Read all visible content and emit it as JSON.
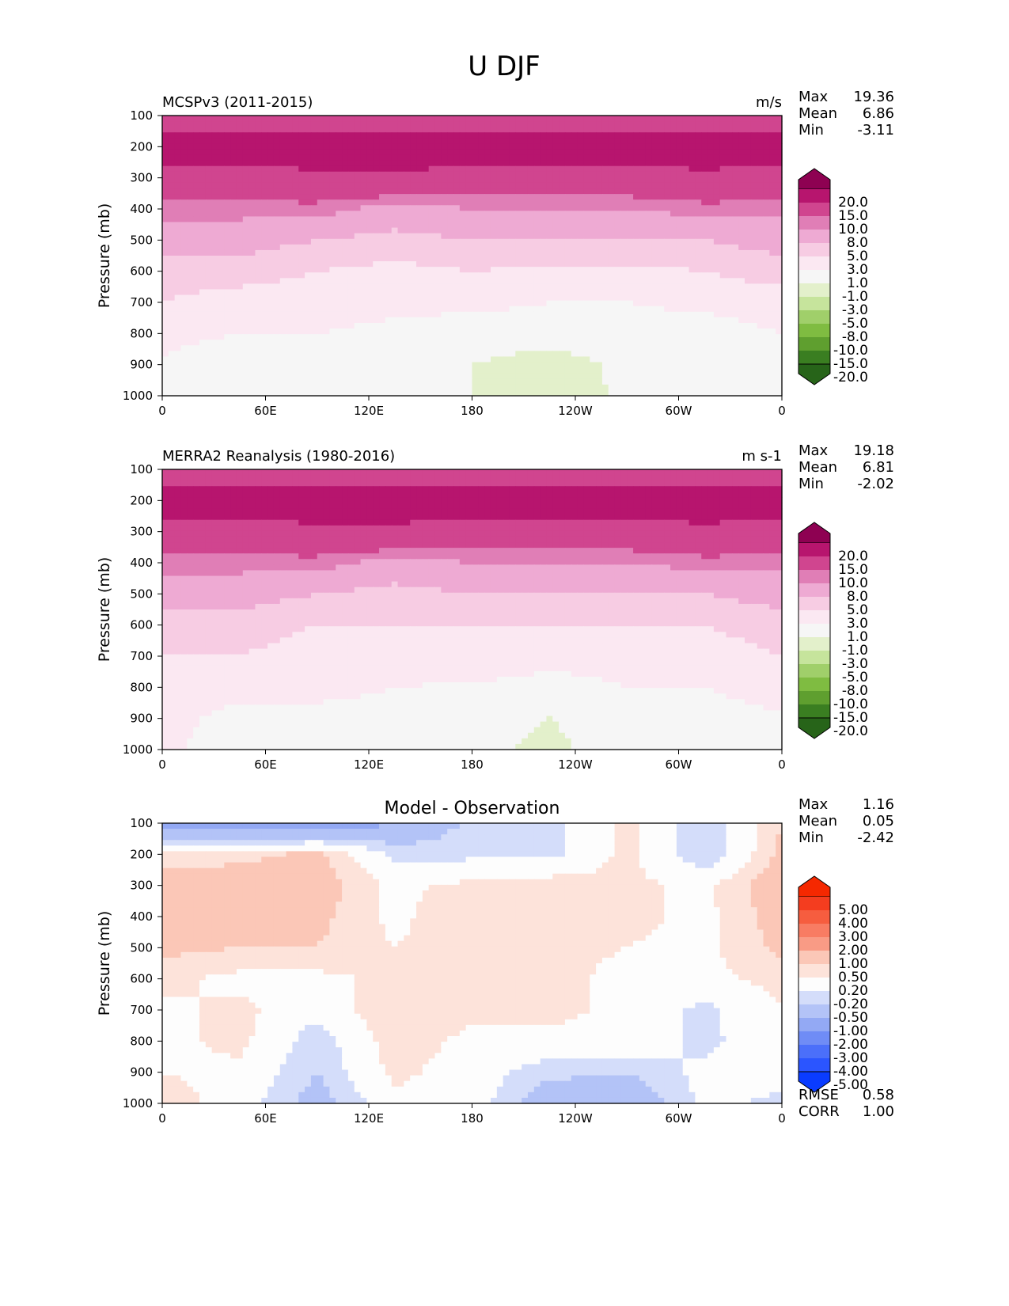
{
  "figure_title": "U DJF",
  "colors": {
    "main_bounds": [
      -25,
      -20,
      -15,
      -10,
      -8,
      -5,
      -3,
      -1,
      1,
      3,
      5,
      8,
      10,
      15,
      20,
      25
    ],
    "main_palette": [
      "#276419",
      "#3a7e21",
      "#5f9f2f",
      "#7fbc41",
      "#a0cf6a",
      "#c6e49c",
      "#e3f0cb",
      "#f6f6f6",
      "#fbe8f2",
      "#f7cce3",
      "#eeaad3",
      "#e07eb6",
      "#d0458f",
      "#b7156e",
      "#8e0152"
    ],
    "diff_bounds": [
      -6,
      -5,
      -4,
      -3,
      -2,
      -1,
      -0.5,
      -0.2,
      0.2,
      0.5,
      1,
      2,
      3,
      4,
      5,
      6
    ],
    "diff_palette": [
      "#0a3cff",
      "#2b55ff",
      "#4b6ffa",
      "#6f8cf6",
      "#93a9f4",
      "#b3c3f7",
      "#d4ddfa",
      "#fdfdfd",
      "#fde3da",
      "#fbc7b7",
      "#f99b85",
      "#f87c63",
      "#f65d3f",
      "#f43d1f",
      "#f52800"
    ]
  },
  "panels": [
    {
      "title": "MCSPv3 (2011-2015)",
      "units": "m/s",
      "stats": [
        {
          "label": "Max",
          "value": "19.36"
        },
        {
          "label": "Mean",
          "value": "6.86"
        },
        {
          "label": "Min",
          "value": "-3.11"
        }
      ],
      "extra_stats": []
    },
    {
      "title": "MERRA2 Reanalysis (1980-2016)",
      "units": "m s-1",
      "stats": [
        {
          "label": "Max",
          "value": "19.18"
        },
        {
          "label": "Mean",
          "value": "6.81"
        },
        {
          "label": "Min",
          "value": "-2.02"
        }
      ],
      "extra_stats": []
    },
    {
      "title": "Model - Observation",
      "units": "",
      "stats": [
        {
          "label": "Max",
          "value": "1.16"
        },
        {
          "label": "Mean",
          "value": "0.05"
        },
        {
          "label": "Min",
          "value": "-2.42"
        }
      ],
      "extra_stats": [
        {
          "label": "RMSE",
          "value": "0.58"
        },
        {
          "label": "CORR",
          "value": "1.00"
        }
      ]
    }
  ],
  "chart_data": [
    {
      "type": "heatmap",
      "title": "MCSPv3 (2011-2015)",
      "ylabel": "Pressure (mb)",
      "xlabel": "",
      "xticks": [
        "0",
        "60E",
        "120E",
        "180",
        "120W",
        "60W",
        "0"
      ],
      "yticks": [
        "100",
        "200",
        "300",
        "400",
        "500",
        "600",
        "700",
        "800",
        "900",
        "1000"
      ],
      "xlim": [
        0,
        360
      ],
      "ylim": [
        1000,
        100
      ],
      "colorbar_labels": [
        "20.0",
        "15.0",
        "10.0",
        "8.0",
        "5.0",
        "3.0",
        "1.0",
        "-1.0",
        "-3.0",
        "-5.0",
        "-8.0",
        "-10.0",
        "-15.0",
        "-20.0"
      ],
      "levels_hPa": [
        100,
        200,
        300,
        400,
        500,
        600,
        700,
        800,
        900,
        1000
      ],
      "lon": [
        0,
        45,
        90,
        135,
        180,
        225,
        270,
        315,
        360
      ],
      "values": [
        [
          12,
          11,
          11,
          10,
          11,
          11,
          11,
          11,
          12
        ],
        [
          18,
          18,
          18,
          19,
          18,
          18,
          18,
          18,
          18
        ],
        [
          13,
          13,
          14,
          14,
          13,
          13,
          13,
          14,
          13
        ],
        [
          9,
          9,
          9,
          7,
          8,
          8,
          8,
          9,
          9
        ],
        [
          6,
          6,
          5,
          4,
          5,
          5,
          5,
          5,
          6
        ],
        [
          4,
          4,
          3,
          2.5,
          3,
          2.5,
          2.5,
          3,
          4
        ],
        [
          3,
          2,
          2,
          1.5,
          1.5,
          1,
          1,
          1.5,
          2
        ],
        [
          1.5,
          1,
          1,
          0.5,
          0,
          0,
          0.3,
          0,
          1
        ],
        [
          0.8,
          0,
          0,
          -0.5,
          -1,
          -2,
          -0.5,
          -0.5,
          0
        ],
        [
          0.5,
          0,
          -0.5,
          -0.5,
          -1,
          -2.5,
          -0.5,
          -1,
          -0.5
        ]
      ]
    },
    {
      "type": "heatmap",
      "title": "MERRA2 Reanalysis (1980-2016)",
      "ylabel": "Pressure (mb)",
      "xlabel": "",
      "xticks": [
        "0",
        "60E",
        "120E",
        "180",
        "120W",
        "60W",
        "0"
      ],
      "yticks": [
        "100",
        "200",
        "300",
        "400",
        "500",
        "600",
        "700",
        "800",
        "900",
        "1000"
      ],
      "xlim": [
        0,
        360
      ],
      "ylim": [
        1000,
        100
      ],
      "colorbar_labels": [
        "20.0",
        "15.0",
        "10.0",
        "8.0",
        "5.0",
        "3.0",
        "1.0",
        "-1.0",
        "-3.0",
        "-5.0",
        "-8.0",
        "-10.0",
        "-15.0",
        "-20.0"
      ],
      "levels_hPa": [
        100,
        200,
        300,
        400,
        500,
        600,
        700,
        800,
        900,
        1000
      ],
      "lon": [
        0,
        45,
        90,
        135,
        180,
        225,
        270,
        315,
        360
      ],
      "values": [
        [
          12,
          11,
          11,
          11,
          11,
          11,
          11,
          11,
          12
        ],
        [
          18,
          18,
          18,
          18,
          18,
          18,
          18,
          18,
          18
        ],
        [
          13,
          13,
          14,
          14,
          13,
          13,
          13,
          14,
          13
        ],
        [
          9,
          9,
          9,
          7,
          8,
          8,
          8,
          9,
          9
        ],
        [
          6,
          6,
          5,
          4,
          5,
          5,
          5,
          5,
          6
        ],
        [
          4,
          4,
          3,
          3,
          3,
          3,
          3,
          3,
          4
        ],
        [
          3,
          3,
          2,
          2,
          2,
          1.5,
          1.5,
          2,
          3
        ],
        [
          2,
          1.5,
          1.5,
          1,
          0.8,
          0.5,
          1,
          1,
          2
        ],
        [
          1.5,
          0.5,
          0.5,
          0.5,
          0,
          -1,
          0,
          0,
          0.8
        ],
        [
          1.2,
          0.5,
          0.5,
          0.3,
          -0.5,
          -1.5,
          0,
          -0.5,
          0
        ]
      ]
    },
    {
      "type": "heatmap",
      "title": "Model - Observation",
      "ylabel": "Pressure (mb)",
      "xlabel": "",
      "xticks": [
        "0",
        "60E",
        "120E",
        "180",
        "120W",
        "60W",
        "0"
      ],
      "yticks": [
        "100",
        "200",
        "300",
        "400",
        "500",
        "600",
        "700",
        "800",
        "900",
        "1000"
      ],
      "xlim": [
        0,
        360
      ],
      "ylim": [
        1000,
        100
      ],
      "colorbar_labels": [
        "5.00",
        "4.00",
        "3.00",
        "2.00",
        "1.00",
        "0.50",
        "0.20",
        "-0.20",
        "-0.50",
        "-1.00",
        "-2.00",
        "-3.00",
        "-4.00",
        "-5.00"
      ],
      "levels_hPa": [
        100,
        200,
        300,
        400,
        500,
        600,
        700,
        800,
        900,
        1000
      ],
      "lon": [
        0,
        45,
        90,
        135,
        180,
        225,
        270,
        315,
        360
      ],
      "values": [
        [
          -1.2,
          -1.5,
          -1.5,
          -1.0,
          -0.4,
          -0.3,
          0.3,
          -0.5,
          0.5
        ],
        [
          0.3,
          0.4,
          0.6,
          -0.3,
          -0.3,
          -0.3,
          0.3,
          -0.5,
          0.6
        ],
        [
          0.8,
          0.7,
          0.7,
          0.1,
          0.3,
          0.4,
          0.3,
          0.1,
          0.8
        ],
        [
          1.0,
          0.7,
          0.6,
          0.1,
          0.5,
          0.4,
          0.3,
          0.1,
          0.7
        ],
        [
          0.6,
          0.5,
          0.5,
          0.2,
          0.4,
          0.3,
          0.2,
          0.1,
          0.6
        ],
        [
          0.3,
          0.1,
          0.1,
          0.3,
          0.3,
          0.3,
          0.1,
          0.1,
          0.3
        ],
        [
          0.1,
          0.3,
          -0.1,
          0.5,
          0.3,
          0.3,
          0.1,
          -0.3,
          0.2
        ],
        [
          0.1,
          0.3,
          -0.4,
          0.4,
          0.1,
          0.1,
          0.1,
          -0.3,
          0.1
        ],
        [
          0.2,
          0.1,
          -0.5,
          0.3,
          0.0,
          -0.4,
          -0.5,
          -0.1,
          0.0
        ],
        [
          0.4,
          0.0,
          -0.7,
          0.1,
          0.0,
          -0.8,
          -0.9,
          -0.1,
          -0.3
        ]
      ]
    }
  ]
}
